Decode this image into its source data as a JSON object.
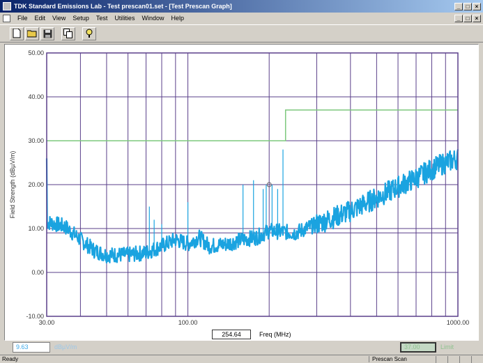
{
  "window": {
    "title": "TDK Standard Emissions Lab - Test prescan01.set - [Test Prescan Graph]",
    "buttons": [
      "_",
      "□",
      "×"
    ]
  },
  "menu": [
    "File",
    "Edit",
    "View",
    "Setup",
    "Test",
    "Utilities",
    "Window",
    "Help"
  ],
  "toolbar": {
    "icons": [
      "new-file-icon",
      "open-folder-icon",
      "save-disk-icon",
      "copy-icon",
      "help-icon"
    ]
  },
  "chart_data": {
    "type": "line",
    "ylabel": "Field Strength (dBµV/m)",
    "xlabel": "Freq (MHz)",
    "xscale": "log",
    "xlim": [
      30,
      1000
    ],
    "ylim": [
      -10,
      50
    ],
    "y_ticks": [
      "50.00",
      "40.00",
      "30.00",
      "20.00",
      "10.00",
      "0.00",
      "-10.00"
    ],
    "x_ticks": [
      "30.00",
      "100.00",
      "1000.00"
    ],
    "grid": true,
    "colors": {
      "trace": "#1aa3e0",
      "limit": "#7dc87d",
      "grid": "#5a3f8a",
      "axis": "#5a3f8a"
    },
    "limit_line": {
      "x": [
        30,
        230,
        230,
        1000
      ],
      "y": [
        30,
        30,
        37,
        37
      ]
    },
    "reference_lines": [
      10,
      9
    ],
    "trace": {
      "x": [
        30,
        35,
        40,
        45,
        50,
        60,
        70,
        80,
        90,
        100,
        110,
        120,
        140,
        160,
        180,
        200,
        250,
        300,
        400,
        500,
        600,
        700,
        800,
        900,
        1000
      ],
      "y": [
        11.5,
        10.5,
        7.5,
        5,
        4,
        4,
        4.5,
        6,
        7.5,
        6.5,
        8,
        6,
        6.5,
        7.5,
        8,
        9.5,
        9,
        11,
        14,
        17,
        19.5,
        21.5,
        23.5,
        25,
        26
      ]
    },
    "spikes": [
      {
        "x": 72,
        "y": 15
      },
      {
        "x": 75,
        "y": 12
      },
      {
        "x": 80,
        "y": 11
      },
      {
        "x": 100,
        "y": 16
      },
      {
        "x": 160,
        "y": 20
      },
      {
        "x": 175,
        "y": 21
      },
      {
        "x": 190,
        "y": 19
      },
      {
        "x": 195,
        "y": 20
      },
      {
        "x": 205,
        "y": 20
      },
      {
        "x": 215,
        "y": 19
      },
      {
        "x": 225,
        "y": 28
      }
    ],
    "marker": {
      "x": 200,
      "y": 20
    }
  },
  "cursor_freq": "254.64",
  "field_value": "9.63",
  "field_unit": "dBµV/m",
  "limit_value": "37.00",
  "limit_label": "Limit",
  "status": {
    "left": "Ready",
    "right": "Prescan Scan"
  }
}
